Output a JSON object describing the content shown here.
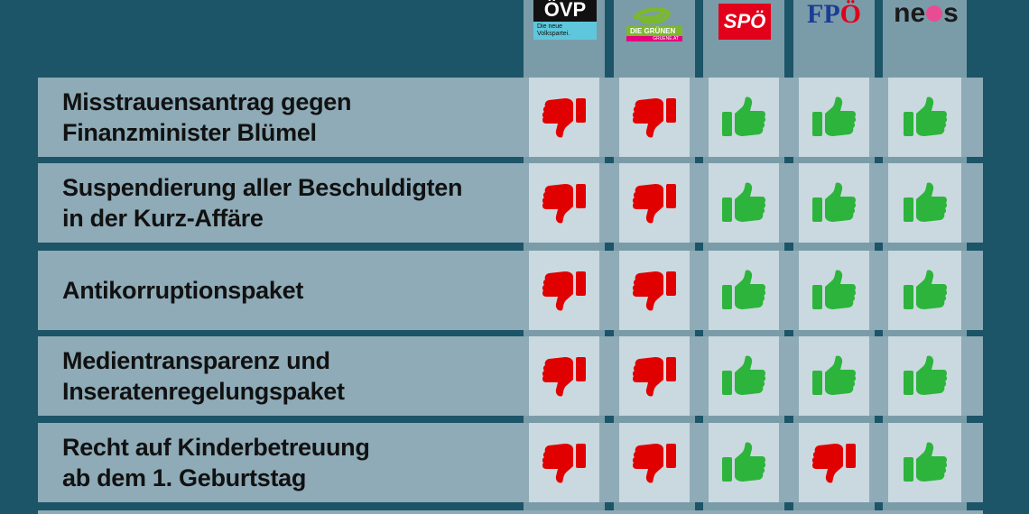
{
  "chart_data": {
    "type": "table",
    "title": "",
    "columns": [
      "ÖVP",
      "Die Grünen",
      "SPÖ",
      "FPÖ",
      "NEOS"
    ],
    "rows": [
      {
        "label_lines": [
          "Misstrauensantrag gegen",
          "Finanzminister Blümel"
        ],
        "votes": [
          "no",
          "no",
          "yes",
          "yes",
          "yes"
        ]
      },
      {
        "label_lines": [
          "Suspendierung aller Beschuldigten",
          "in der Kurz-Affäre"
        ],
        "votes": [
          "no",
          "no",
          "yes",
          "yes",
          "yes"
        ]
      },
      {
        "label_lines": [
          "Antikorruptionspaket"
        ],
        "votes": [
          "no",
          "no",
          "yes",
          "yes",
          "yes"
        ]
      },
      {
        "label_lines": [
          "Medientransparenz und",
          "Inseratenregelungspaket"
        ],
        "votes": [
          "no",
          "no",
          "yes",
          "yes",
          "yes"
        ]
      },
      {
        "label_lines": [
          "Recht auf Kinderbetreuung",
          "ab dem 1. Geburtstag"
        ],
        "votes": [
          "no",
          "no",
          "yes",
          "no",
          "yes"
        ]
      }
    ],
    "legend": {
      "yes": "thumbs-up (green)",
      "no": "thumbs-down (red)"
    }
  },
  "logos": {
    "ovp": {
      "main": "ÖVP",
      "sub": "Die neue Volkspartei."
    },
    "gruene": {
      "main": "DIE GRÜNEN",
      "sub": "GRUENE.AT"
    },
    "spo": {
      "main": "SPÖ"
    },
    "fpo": {
      "main": "FP",
      "accent": "Ö"
    },
    "neos": {
      "pre": "ne",
      "post": "s"
    }
  },
  "rows": [
    {
      "l1": "Misstrauensantrag gegen",
      "l2": "Finanzminister Blümel"
    },
    {
      "l1": "Suspendierung aller Beschuldigten",
      "l2": "in der Kurz-Affäre"
    },
    {
      "l1": "Antikorruptionspaket",
      "l2": ""
    },
    {
      "l1": "Medientransparenz und",
      "l2": "Inseratenregelungspaket"
    },
    {
      "l1": "Recht auf Kinderbetreuung",
      "l2": "ab dem 1. Geburtstag"
    }
  ],
  "colors": {
    "background": "#1c5468",
    "row": "#8eabb7",
    "cell": "#cad9df",
    "yes": "#2db43c",
    "no": "#e00000"
  }
}
